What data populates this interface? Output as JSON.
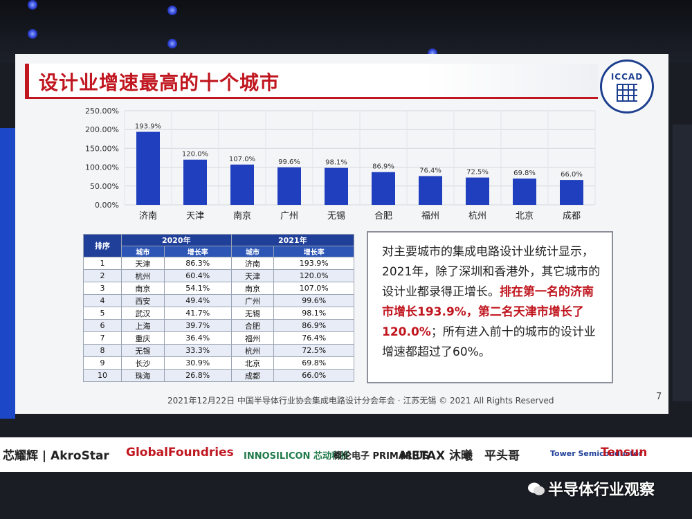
{
  "slide": {
    "title": "设计业增速最高的十个城市",
    "logo_text": "ICCAD",
    "footer": "2021年12月22日 中国半导体行业协会集成电路设计分会年会 · 江苏无锡 © 2021 All Rights Reserved",
    "page_number": "7"
  },
  "chart_data": {
    "type": "bar",
    "categories": [
      "济南",
      "天津",
      "南京",
      "广州",
      "无锡",
      "合肥",
      "福州",
      "杭州",
      "北京",
      "成都"
    ],
    "values": [
      193.9,
      120.0,
      107.0,
      99.6,
      98.1,
      86.9,
      76.4,
      72.5,
      69.8,
      66.0
    ],
    "data_labels": [
      "193.9%",
      "120.0%",
      "107.0%",
      "99.6%",
      "98.1%",
      "86.9%",
      "76.4%",
      "72.5%",
      "69.8%",
      "66.0%"
    ],
    "y_ticks": [
      "250.00%",
      "200.00%",
      "150.00%",
      "100.00%",
      "50.00%",
      "0.00%"
    ],
    "ylim": [
      0,
      250
    ],
    "grid": true,
    "bar_color": "#1f3fbf"
  },
  "table": {
    "rank_header": "排序",
    "year1": "2020年",
    "year2": "2021年",
    "city_header": "城市",
    "rate_header": "增长率",
    "rows": [
      {
        "rank": "1",
        "city2020": "天津",
        "rate2020": "86.3%",
        "city2021": "济南",
        "rate2021": "193.9%"
      },
      {
        "rank": "2",
        "city2020": "杭州",
        "rate2020": "60.4%",
        "city2021": "天津",
        "rate2021": "120.0%"
      },
      {
        "rank": "3",
        "city2020": "南京",
        "rate2020": "54.1%",
        "city2021": "南京",
        "rate2021": "107.0%"
      },
      {
        "rank": "4",
        "city2020": "西安",
        "rate2020": "49.4%",
        "city2021": "广州",
        "rate2021": "99.6%"
      },
      {
        "rank": "5",
        "city2020": "武汉",
        "rate2020": "41.7%",
        "city2021": "无锡",
        "rate2021": "98.1%"
      },
      {
        "rank": "6",
        "city2020": "上海",
        "rate2020": "39.7%",
        "city2021": "合肥",
        "rate2021": "86.9%"
      },
      {
        "rank": "7",
        "city2020": "重庆",
        "rate2020": "36.4%",
        "city2021": "福州",
        "rate2021": "76.4%"
      },
      {
        "rank": "8",
        "city2020": "无锡",
        "rate2020": "33.3%",
        "city2021": "杭州",
        "rate2021": "72.5%"
      },
      {
        "rank": "9",
        "city2020": "长沙",
        "rate2020": "30.9%",
        "city2021": "北京",
        "rate2021": "69.8%"
      },
      {
        "rank": "10",
        "city2020": "珠海",
        "rate2020": "26.8%",
        "city2021": "成都",
        "rate2021": "66.0%"
      }
    ]
  },
  "textbox": {
    "line1": "对主要城市的集成电路设计业统计显示，2021年，除了深圳和香港外，其它城市的设计业都录得正增长。",
    "highlight1": "排在第一名的济南市增长193.9%，",
    "highlight2": "第二名天津市增长了120.0%",
    "line2": "；所有进入前十的城市的设计业增速都超过了60%。"
  },
  "sponsors": [
    "芯耀辉 | AkroStar",
    "GlobalFoundries",
    "INNOSILICON 芯动科技",
    "概伦电子 PRIMARIUS",
    "METAX 沐曦",
    "平头哥",
    "Tower Semiconductor",
    "Tensun"
  ],
  "watermark": "半导体行业观察"
}
